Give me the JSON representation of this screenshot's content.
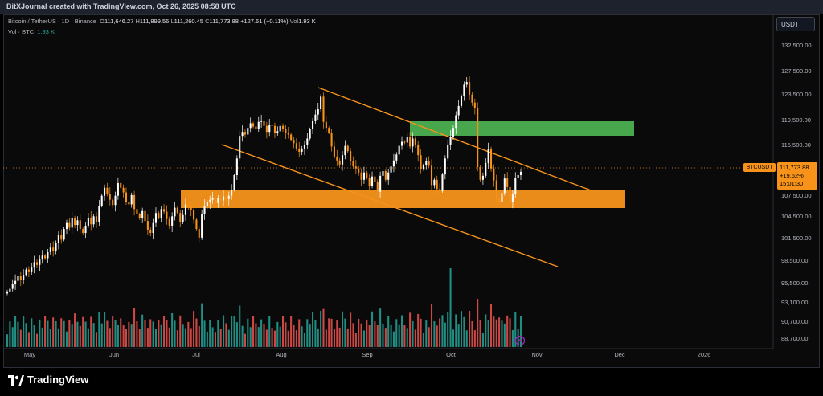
{
  "header": {
    "title": "BitXJournal created with TradingView.com, Oct 26, 2025 08:58 UTC"
  },
  "legend": {
    "symbol": "Bitcoin / TetherUS · 1D · Binance",
    "open_label": "O",
    "open": "111,646.27",
    "high_label": "H",
    "high": "111,899.56",
    "low_label": "L",
    "low": "111,260.45",
    "close_label": "C",
    "close": "111,773.88",
    "change": "+127.61 (+0.11%)",
    "vol_label": "Vol",
    "vol": "1.93 K",
    "volume_line_label": "Vol · BTC",
    "volume_line_value": "1.93 K"
  },
  "price_scale": {
    "currency": "USDT",
    "last_price": "111,773.88",
    "last_change_pct": "+19.62%",
    "countdown": "15:01:30",
    "symbol_tag": "BTCUSDT"
  },
  "brand": {
    "name": "TradingView"
  },
  "colors": {
    "up": "#ffffff",
    "down": "#f7931a",
    "vol_up": "#26a69a",
    "vol_down": "#ef5350",
    "channel": "#f7931a",
    "resistance_zone": "#4caf50",
    "support_zone": "#f7931a"
  },
  "chart_data": {
    "type": "candlestick",
    "y_ticks": [
      "132,500.00",
      "127,500.00",
      "123,500.00",
      "119,500.00",
      "115,500.00",
      "111,500.00",
      "107,500.00",
      "104,500.00",
      "101,500.00",
      "98,500.00",
      "95,500.00",
      "93,100.00",
      "90,700.00",
      "88,700.00"
    ],
    "x_ticks": [
      "May",
      "Jun",
      "Jul",
      "Aug",
      "Sep",
      "Oct",
      "Nov",
      "Dec",
      "2026"
    ],
    "closes": [
      93800,
      94200,
      94900,
      95400,
      96100,
      95600,
      96300,
      97100,
      96700,
      97400,
      98200,
      97800,
      98600,
      99200,
      98800,
      99700,
      100400,
      99900,
      101100,
      102300,
      101600,
      103200,
      104100,
      103400,
      104800,
      103800,
      104500,
      103200,
      102600,
      103700,
      104900,
      103900,
      105100,
      104300,
      106700,
      108200,
      109400,
      108500,
      107600,
      106800,
      108200,
      110100,
      109400,
      108700,
      107200,
      106900,
      108300,
      106200,
      105400,
      104800,
      105900,
      104400,
      103100,
      102600,
      104100,
      105600,
      104900,
      106200,
      105800,
      104700,
      103700,
      105100,
      106400,
      105600,
      104300,
      105300,
      106900,
      106600,
      106100,
      104600,
      103200,
      101900,
      105400,
      106700,
      107200,
      107600,
      107900,
      107100,
      107800,
      107500,
      108100,
      107700,
      108200,
      109100,
      111300,
      113800,
      117200,
      117800,
      117400,
      118400,
      119100,
      118600,
      118200,
      119300,
      119400,
      118700,
      117800,
      118900,
      118700,
      117600,
      117900,
      118700,
      118300,
      117700,
      117400,
      116600,
      116100,
      115300,
      114800,
      115300,
      115900,
      116800,
      118200,
      119400,
      120400,
      121200,
      123100,
      119300,
      118400,
      117700,
      115600,
      114100,
      113500,
      112900,
      114300,
      115700,
      114900,
      113400,
      112600,
      112300,
      111700,
      110600,
      111700,
      110900,
      109700,
      111100,
      110300,
      108800,
      111200,
      111900,
      110600,
      111700,
      112600,
      113500,
      114400,
      115700,
      116300,
      116200,
      117100,
      115600,
      116800,
      115900,
      114300,
      112200,
      112800,
      113400,
      112700,
      109800,
      110600,
      109200,
      108900,
      111400,
      113800,
      115900,
      117100,
      118400,
      120300,
      121700,
      123200,
      124900,
      125300,
      123400,
      122200,
      121400,
      112500,
      110600,
      111200,
      113100,
      115200,
      112300,
      110500,
      107800,
      107300,
      108600,
      110800,
      109500,
      107300,
      108500,
      110900,
      111300,
      111800
    ]
  }
}
